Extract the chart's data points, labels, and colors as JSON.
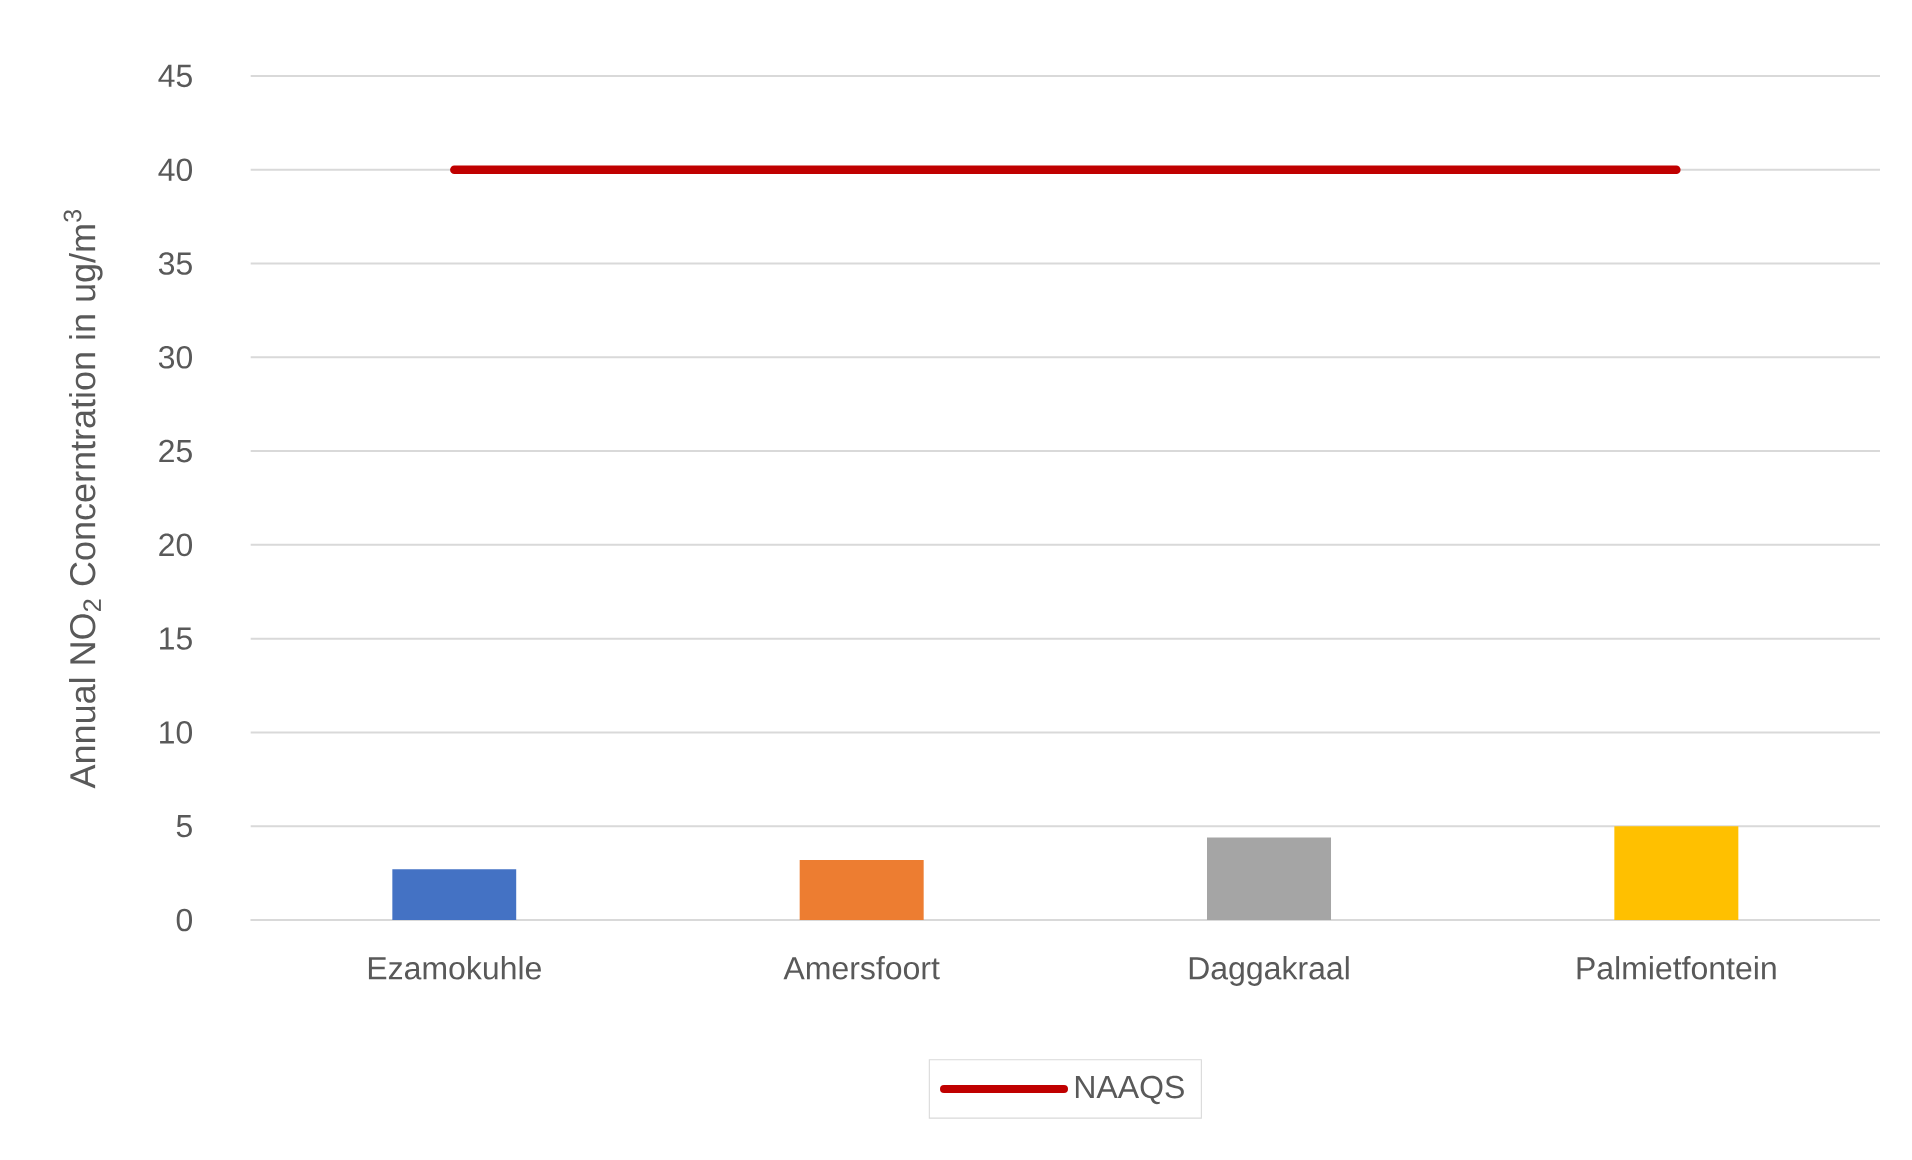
{
  "chart_data": {
    "type": "bar",
    "ylabel": "Annual NO$_{2}$ Concerntration in ug/m$^{3}$",
    "categories": [
      "Ezamokuhle",
      "Amersfoort",
      "Daggakraal",
      "Palmietfontein"
    ],
    "series": [
      {
        "values": [
          2.7,
          3.2,
          4.4,
          5.0
        ],
        "colors": [
          "#4472c4",
          "#ed7d31",
          "#a5a5a5",
          "#ffc000"
        ]
      },
      {
        "type": "line",
        "name": "NAAQS",
        "color": "#c00000",
        "values": [
          40,
          40,
          40,
          40
        ]
      }
    ],
    "ylim": [
      0,
      45
    ],
    "yticks": [
      0,
      5,
      10,
      15,
      20,
      25,
      30,
      35,
      40,
      45
    ],
    "grid": "y",
    "legend": "bottom"
  }
}
